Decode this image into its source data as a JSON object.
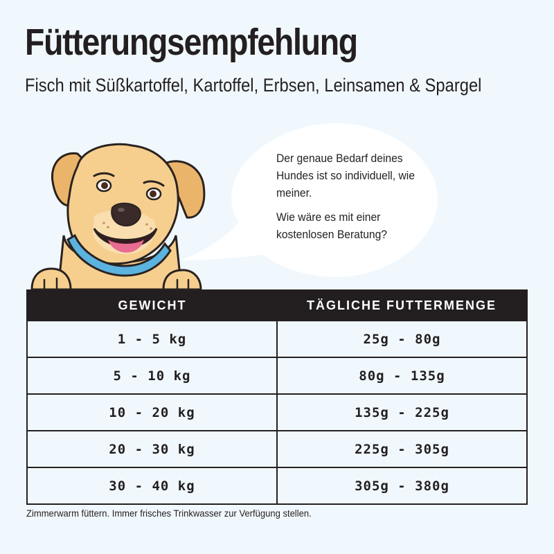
{
  "title": "Fütterungsempfehlung",
  "subtitle": "Fisch mit Süßkartoffel, Kartoffel, Erbsen, Leinsamen & Spargel",
  "speech_bubble": {
    "line1": "Der genaue Bedarf deines Hundes ist so individuell, wie meiner.",
    "line2": "Wie wäre es mit einer kostenlosen Beratung?"
  },
  "table": {
    "headers": [
      "GEWICHT",
      "TÄGLICHE FUTTERMENGE"
    ],
    "rows": [
      {
        "weight": "1 - 5 kg",
        "amount": "25g - 80g"
      },
      {
        "weight": "5 - 10 kg",
        "amount": "80g - 135g"
      },
      {
        "weight": "10 - 20 kg",
        "amount": "135g - 225g"
      },
      {
        "weight": "20 - 30 kg",
        "amount": "225g - 305g"
      },
      {
        "weight": "30 - 40 kg",
        "amount": "305g - 380g"
      }
    ]
  },
  "footnote": "Zimmerwarm füttern. Immer frisches Trinkwasser zur Verfügung stellen.",
  "colors": {
    "background": "#f1f8fd",
    "dark": "#231f20",
    "dog_fur": "#f6cf8f",
    "dog_ears": "#eab46a",
    "collar": "#5bb3e0",
    "tongue": "#e86b91"
  },
  "icons": [
    "dog-mascot-illustration",
    "speech-bubble"
  ]
}
